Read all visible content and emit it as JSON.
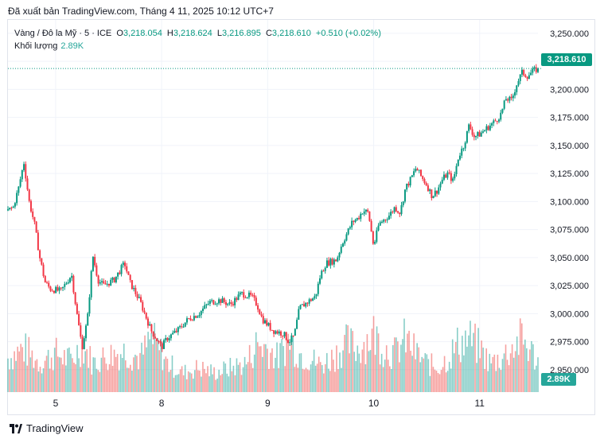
{
  "publish_line": "Đã xuất bản TradingView.com, Tháng 4 11, 2025 10:12 UTC+7",
  "legend": {
    "symbol": "Vàng / Đô la Mỹ · 5 · ICE",
    "open_label": "O",
    "open": "3,218.054",
    "high_label": "H",
    "high": "3,218.624",
    "low_label": "L",
    "low": "3,216.895",
    "close_label": "C",
    "close": "3,218.610",
    "change": "+0.510 (+0.02%)"
  },
  "volume_legend": {
    "label": "Khối lượng",
    "value": "2.89K"
  },
  "last_price_tag": "3,218.610",
  "volume_tag": "2.89K",
  "brand": "TradingView",
  "colors": {
    "up": "#089981",
    "down": "#f23645",
    "vol_up": "#26a69a",
    "vol_down": "#ef5350"
  },
  "chart_data": {
    "type": "candlestick",
    "y_axis_labels": [
      "3,250.000",
      "3,225.000",
      "3,200.000",
      "3,175.000",
      "3,150.000",
      "3,125.000",
      "3,100.000",
      "3,075.000",
      "3,050.000",
      "3,025.000",
      "3,000.000",
      "2,975.000",
      "2,950.000"
    ],
    "y_axis_values": [
      3250,
      3225,
      3200,
      3175,
      3150,
      3125,
      3100,
      3075,
      3050,
      3025,
      3000,
      2975,
      2950
    ],
    "ylim": [
      2930,
      3262
    ],
    "x_axis_labels": [
      "5",
      "8",
      "9",
      "10",
      "11"
    ],
    "x_axis_positions": [
      0.09,
      0.29,
      0.49,
      0.69,
      0.89
    ],
    "grid": true,
    "legend_placement": "top-left",
    "price_path": [
      [
        0.0,
        3092
      ],
      [
        0.01,
        3095
      ],
      [
        0.02,
        3112
      ],
      [
        0.03,
        3135
      ],
      [
        0.04,
        3100
      ],
      [
        0.05,
        3080
      ],
      [
        0.06,
        3050
      ],
      [
        0.07,
        3028
      ],
      [
        0.08,
        3022
      ],
      [
        0.1,
        3020
      ],
      [
        0.12,
        3035
      ],
      [
        0.13,
        3000
      ],
      [
        0.14,
        2970
      ],
      [
        0.15,
        2995
      ],
      [
        0.16,
        3052
      ],
      [
        0.17,
        3030
      ],
      [
        0.18,
        3025
      ],
      [
        0.2,
        3030
      ],
      [
        0.22,
        3045
      ],
      [
        0.23,
        3028
      ],
      [
        0.25,
        3010
      ],
      [
        0.27,
        2985
      ],
      [
        0.29,
        2970
      ],
      [
        0.3,
        2978
      ],
      [
        0.32,
        2985
      ],
      [
        0.34,
        2995
      ],
      [
        0.36,
        3000
      ],
      [
        0.38,
        3010
      ],
      [
        0.4,
        3012
      ],
      [
        0.42,
        3008
      ],
      [
        0.44,
        3018
      ],
      [
        0.46,
        3015
      ],
      [
        0.47,
        3008
      ],
      [
        0.48,
        2995
      ],
      [
        0.5,
        2985
      ],
      [
        0.52,
        2982
      ],
      [
        0.53,
        2975
      ],
      [
        0.54,
        2980
      ],
      [
        0.55,
        3005
      ],
      [
        0.57,
        3012
      ],
      [
        0.58,
        3015
      ],
      [
        0.59,
        3035
      ],
      [
        0.6,
        3045
      ],
      [
        0.62,
        3048
      ],
      [
        0.63,
        3062
      ],
      [
        0.64,
        3072
      ],
      [
        0.65,
        3082
      ],
      [
        0.66,
        3085
      ],
      [
        0.67,
        3092
      ],
      [
        0.68,
        3090
      ],
      [
        0.69,
        3060
      ],
      [
        0.7,
        3080
      ],
      [
        0.72,
        3088
      ],
      [
        0.73,
        3095
      ],
      [
        0.74,
        3090
      ],
      [
        0.75,
        3112
      ],
      [
        0.76,
        3120
      ],
      [
        0.77,
        3130
      ],
      [
        0.78,
        3122
      ],
      [
        0.79,
        3115
      ],
      [
        0.8,
        3105
      ],
      [
        0.81,
        3110
      ],
      [
        0.82,
        3120
      ],
      [
        0.83,
        3125
      ],
      [
        0.84,
        3118
      ],
      [
        0.85,
        3140
      ],
      [
        0.86,
        3150
      ],
      [
        0.87,
        3168
      ],
      [
        0.88,
        3158
      ],
      [
        0.89,
        3160
      ],
      [
        0.91,
        3168
      ],
      [
        0.92,
        3172
      ],
      [
        0.93,
        3178
      ],
      [
        0.94,
        3192
      ],
      [
        0.95,
        3190
      ],
      [
        0.96,
        3205
      ],
      [
        0.97,
        3215
      ],
      [
        0.98,
        3212
      ],
      [
        0.99,
        3216
      ],
      [
        1.0,
        3218.61
      ]
    ],
    "volume_max_k": 8,
    "volume_path": [
      [
        0.0,
        3.5
      ],
      [
        0.03,
        4.5
      ],
      [
        0.06,
        3.0
      ],
      [
        0.09,
        4.0
      ],
      [
        0.12,
        3.2
      ],
      [
        0.14,
        5.0
      ],
      [
        0.16,
        3.0
      ],
      [
        0.19,
        3.8
      ],
      [
        0.22,
        4.2
      ],
      [
        0.25,
        3.5
      ],
      [
        0.27,
        5.5
      ],
      [
        0.29,
        4.0
      ],
      [
        0.3,
        3.0
      ],
      [
        0.33,
        2.0
      ],
      [
        0.36,
        2.5
      ],
      [
        0.39,
        2.0
      ],
      [
        0.42,
        2.5
      ],
      [
        0.45,
        3.0
      ],
      [
        0.47,
        5.0
      ],
      [
        0.49,
        4.5
      ],
      [
        0.51,
        3.5
      ],
      [
        0.53,
        5.5
      ],
      [
        0.55,
        4.0
      ],
      [
        0.57,
        3.5
      ],
      [
        0.59,
        2.8
      ],
      [
        0.61,
        3.5
      ],
      [
        0.64,
        5.0
      ],
      [
        0.66,
        4.5
      ],
      [
        0.69,
        6.0
      ],
      [
        0.71,
        4.5
      ],
      [
        0.73,
        4.0
      ],
      [
        0.75,
        5.5
      ],
      [
        0.77,
        4.0
      ],
      [
        0.79,
        3.0
      ],
      [
        0.81,
        2.5
      ],
      [
        0.83,
        3.5
      ],
      [
        0.85,
        5.0
      ],
      [
        0.87,
        5.5
      ],
      [
        0.89,
        4.5
      ],
      [
        0.91,
        3.0
      ],
      [
        0.93,
        3.5
      ],
      [
        0.95,
        4.5
      ],
      [
        0.97,
        5.5
      ],
      [
        1.0,
        3.2
      ]
    ]
  }
}
